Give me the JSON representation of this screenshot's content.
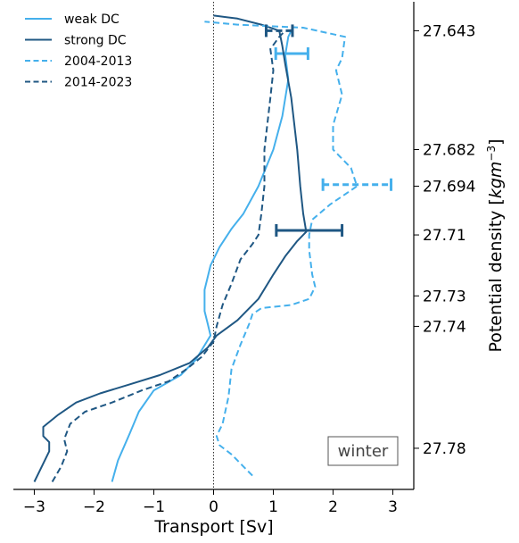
{
  "chart_data": {
    "type": "line",
    "title": "",
    "xlabel": "Transport [Sv]",
    "ylabel": "Potential density [kgm⁻³]",
    "ylabel_parts": {
      "text": "Potential density [",
      "unit": "kgm",
      "exponent": "−3",
      "close": "]"
    },
    "xlim": [
      -3.35,
      3.35
    ],
    "ylim": [
      27.7935,
      27.6335
    ],
    "x_ticks": [
      -3,
      -2,
      -1,
      0,
      1,
      2,
      3
    ],
    "x_tick_labels": [
      "−3",
      "−2",
      "−1",
      "0",
      "1",
      "2",
      "3"
    ],
    "y_ticks": [
      27.643,
      27.682,
      27.694,
      27.71,
      27.73,
      27.74,
      27.78
    ],
    "y_tick_labels": [
      "27.643",
      "27.682",
      "27.694",
      "27.71",
      "27.73",
      "27.74",
      "27.78"
    ],
    "y_axis_side": "right",
    "zero_line": true,
    "grid": false,
    "legend_position": "top-left",
    "panel_label": "winter",
    "series": [
      {
        "name": "weak DC",
        "color": "#45b0ec",
        "style": "solid",
        "points": [
          [
            -1.7,
            27.791
          ],
          [
            -1.6,
            27.784
          ],
          [
            -1.4,
            27.775
          ],
          [
            -1.25,
            27.768
          ],
          [
            -1.0,
            27.761
          ],
          [
            -0.55,
            27.756
          ],
          [
            -0.3,
            27.751
          ],
          [
            -0.05,
            27.743
          ],
          [
            -0.1,
            27.739
          ],
          [
            -0.15,
            27.735
          ],
          [
            -0.15,
            27.728
          ],
          [
            -0.05,
            27.72
          ],
          [
            0.1,
            27.714
          ],
          [
            0.3,
            27.708
          ],
          [
            0.5,
            27.703
          ],
          [
            0.75,
            27.694
          ],
          [
            1.0,
            27.682
          ],
          [
            1.15,
            27.671
          ],
          [
            1.25,
            27.659
          ],
          [
            1.2,
            27.651
          ],
          [
            1.25,
            27.645
          ],
          [
            1.3,
            27.643
          ]
        ],
        "error_bar": {
          "y": 27.6505,
          "x": 1.31,
          "xerr": 0.27
        }
      },
      {
        "name": "strong DC",
        "color": "#1f5783",
        "style": "solid",
        "points": [
          [
            -3.0,
            27.791
          ],
          [
            -2.9,
            27.787
          ],
          [
            -2.75,
            27.781
          ],
          [
            -2.75,
            27.778
          ],
          [
            -2.85,
            27.776
          ],
          [
            -2.85,
            27.773
          ],
          [
            -2.6,
            27.769
          ],
          [
            -2.3,
            27.765
          ],
          [
            -1.9,
            27.762
          ],
          [
            -1.4,
            27.759
          ],
          [
            -0.9,
            27.756
          ],
          [
            -0.4,
            27.752
          ],
          [
            -0.1,
            27.747
          ],
          [
            0.05,
            27.743
          ],
          [
            0.4,
            27.738
          ],
          [
            0.75,
            27.731
          ],
          [
            1.0,
            27.723
          ],
          [
            1.2,
            27.717
          ],
          [
            1.4,
            27.712
          ],
          [
            1.55,
            27.709
          ],
          [
            1.5,
            27.703
          ],
          [
            1.45,
            27.694
          ],
          [
            1.4,
            27.682
          ],
          [
            1.3,
            27.665
          ],
          [
            1.2,
            27.654
          ],
          [
            1.15,
            27.648
          ],
          [
            1.1,
            27.643
          ],
          [
            0.8,
            27.641
          ],
          [
            0.4,
            27.639
          ],
          [
            0.0,
            27.638
          ]
        ],
        "error_bar": {
          "y": 27.7085,
          "x": 1.6,
          "xerr": 0.55
        }
      },
      {
        "name": "2004-2013",
        "color": "#45b0ec",
        "style": "dashed",
        "points": [
          [
            0.65,
            27.789
          ],
          [
            0.5,
            27.786
          ],
          [
            0.3,
            27.782
          ],
          [
            0.1,
            27.779
          ],
          [
            0.05,
            27.776
          ],
          [
            0.15,
            27.772
          ],
          [
            0.25,
            27.763
          ],
          [
            0.3,
            27.754
          ],
          [
            0.45,
            27.746
          ],
          [
            0.6,
            27.739
          ],
          [
            0.65,
            27.736
          ],
          [
            0.8,
            27.734
          ],
          [
            1.3,
            27.733
          ],
          [
            1.6,
            27.731
          ],
          [
            1.7,
            27.727
          ],
          [
            1.65,
            27.723
          ],
          [
            1.6,
            27.715
          ],
          [
            1.6,
            27.71
          ],
          [
            1.65,
            27.705
          ],
          [
            1.95,
            27.7
          ],
          [
            2.25,
            27.696
          ],
          [
            2.4,
            27.694
          ],
          [
            2.3,
            27.688
          ],
          [
            2.0,
            27.682
          ],
          [
            2.0,
            27.674
          ],
          [
            2.15,
            27.664
          ],
          [
            2.05,
            27.656
          ],
          [
            2.15,
            27.652
          ],
          [
            2.2,
            27.645
          ],
          [
            1.5,
            27.642
          ],
          [
            0.4,
            27.641
          ],
          [
            -0.15,
            27.64
          ]
        ],
        "error_bar": {
          "y": 27.6935,
          "x": 2.4,
          "xerr": 0.57
        }
      },
      {
        "name": "2014-2023",
        "color": "#1f5783",
        "style": "dashed",
        "points": [
          [
            -2.7,
            27.791
          ],
          [
            -2.55,
            27.786
          ],
          [
            -2.45,
            27.781
          ],
          [
            -2.5,
            27.777
          ],
          [
            -2.4,
            27.772
          ],
          [
            -2.15,
            27.768
          ],
          [
            -1.7,
            27.765
          ],
          [
            -1.2,
            27.761
          ],
          [
            -0.75,
            27.758
          ],
          [
            -0.45,
            27.754
          ],
          [
            -0.2,
            27.75
          ],
          [
            0.0,
            27.745
          ],
          [
            0.05,
            27.74
          ],
          [
            0.15,
            27.733
          ],
          [
            0.3,
            27.726
          ],
          [
            0.45,
            27.718
          ],
          [
            0.65,
            27.713
          ],
          [
            0.75,
            27.71
          ],
          [
            0.8,
            27.703
          ],
          [
            0.85,
            27.694
          ],
          [
            0.85,
            27.682
          ],
          [
            0.95,
            27.665
          ],
          [
            1.0,
            27.656
          ],
          [
            0.95,
            27.649
          ],
          [
            1.1,
            27.645
          ],
          [
            1.2,
            27.643
          ]
        ],
        "error_bar": {
          "y": 27.643,
          "x": 1.1,
          "xerr": 0.22
        }
      }
    ]
  }
}
